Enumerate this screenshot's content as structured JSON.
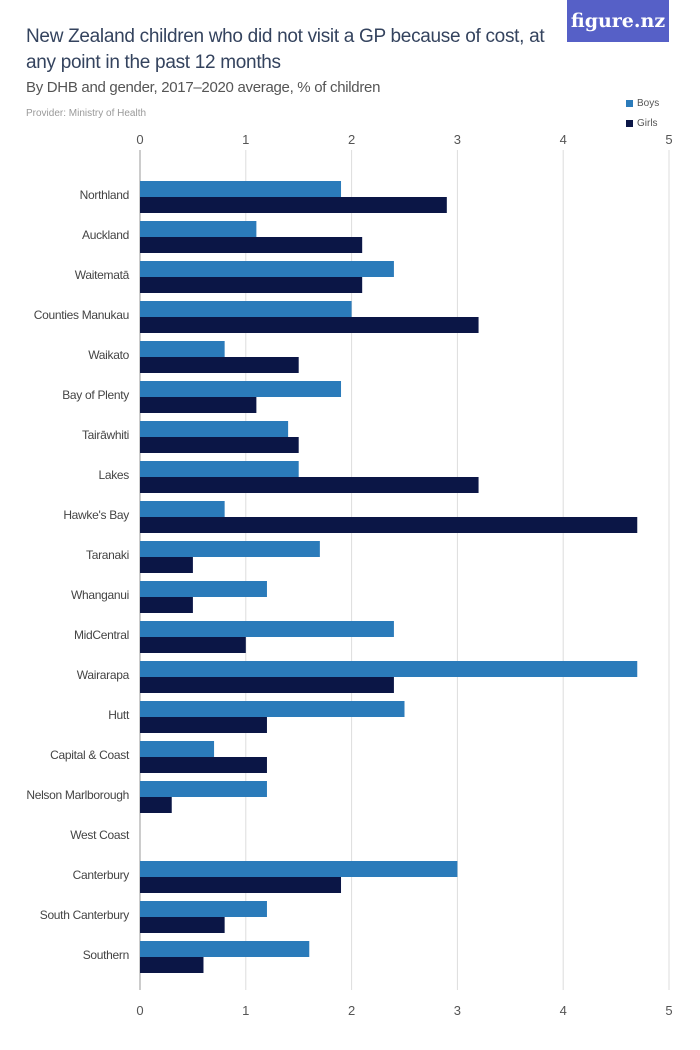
{
  "logo": "figure.nz",
  "chart_data": {
    "type": "bar",
    "orientation": "horizontal",
    "title": "New Zealand children who did not visit a GP because of cost, at any point in the past 12 months",
    "subtitle": "By DHB and gender, 2017–2020 average, % of children",
    "provider": "Provider: Ministry of Health",
    "categories": [
      "Northland",
      "Auckland",
      "Waitematā",
      "Counties Manukau",
      "Waikato",
      "Bay of Plenty",
      "Tairāwhiti",
      "Lakes",
      "Hawke's Bay",
      "Taranaki",
      "Whanganui",
      "MidCentral",
      "Wairarapa",
      "Hutt",
      "Capital & Coast",
      "Nelson Marlborough",
      "West Coast",
      "Canterbury",
      "South Canterbury",
      "Southern"
    ],
    "series": [
      {
        "name": "Boys",
        "color": "#2b7bba",
        "values": [
          1.9,
          1.1,
          2.4,
          2.0,
          0.8,
          1.9,
          1.4,
          1.5,
          0.8,
          1.7,
          1.2,
          2.4,
          4.7,
          2.5,
          0.7,
          1.2,
          null,
          3.0,
          1.2,
          1.6
        ]
      },
      {
        "name": "Girls",
        "color": "#0b1646",
        "values": [
          2.9,
          2.1,
          2.1,
          3.2,
          1.5,
          1.1,
          1.5,
          3.2,
          4.7,
          0.5,
          0.5,
          1.0,
          2.4,
          1.2,
          1.2,
          0.3,
          null,
          1.9,
          0.8,
          0.6
        ]
      }
    ],
    "xlim": [
      0,
      5
    ],
    "ticks": [
      "0",
      "1",
      "2",
      "3",
      "4",
      "5"
    ],
    "grid": true,
    "legend": "top-right"
  }
}
